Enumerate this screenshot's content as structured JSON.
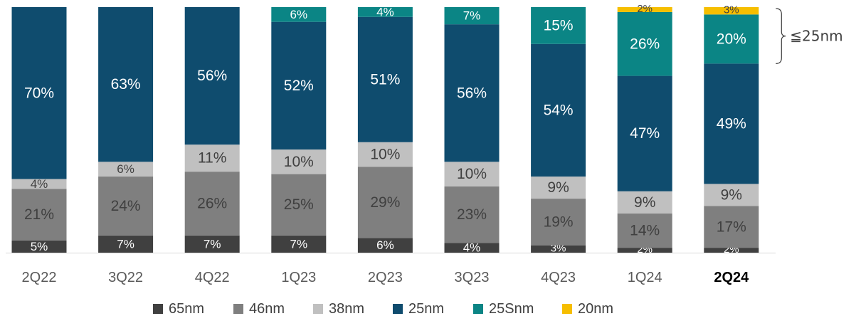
{
  "chart_data": {
    "type": "bar",
    "stacked": true,
    "categories": [
      "2Q22",
      "3Q22",
      "4Q22",
      "1Q23",
      "2Q23",
      "3Q23",
      "4Q23",
      "1Q24",
      "2Q24"
    ],
    "highlight_category": "2Q24",
    "series": [
      {
        "name": "65nm",
        "color": "#404040",
        "values": [
          5,
          7,
          7,
          7,
          6,
          4,
          3,
          2,
          2
        ]
      },
      {
        "name": "46nm",
        "color": "#7f7f7f",
        "values": [
          21,
          24,
          26,
          25,
          29,
          23,
          19,
          14,
          17
        ]
      },
      {
        "name": "38nm",
        "color": "#c0c0c0",
        "values": [
          4,
          6,
          11,
          10,
          10,
          10,
          9,
          9,
          9
        ]
      },
      {
        "name": "25nm",
        "color": "#0f4c6e",
        "values": [
          70,
          63,
          56,
          52,
          51,
          56,
          54,
          47,
          49
        ]
      },
      {
        "name": "25Snm",
        "color": "#0b8585",
        "values": [
          0,
          0,
          0,
          6,
          4,
          7,
          15,
          26,
          20
        ]
      },
      {
        "name": "20nm",
        "color": "#f6be00",
        "values": [
          0,
          0,
          0,
          0,
          0,
          0,
          0,
          2,
          3
        ]
      }
    ],
    "value_suffix": "%",
    "bracket_label": "≦25nm",
    "legend_position": "bottom",
    "grid": false
  }
}
